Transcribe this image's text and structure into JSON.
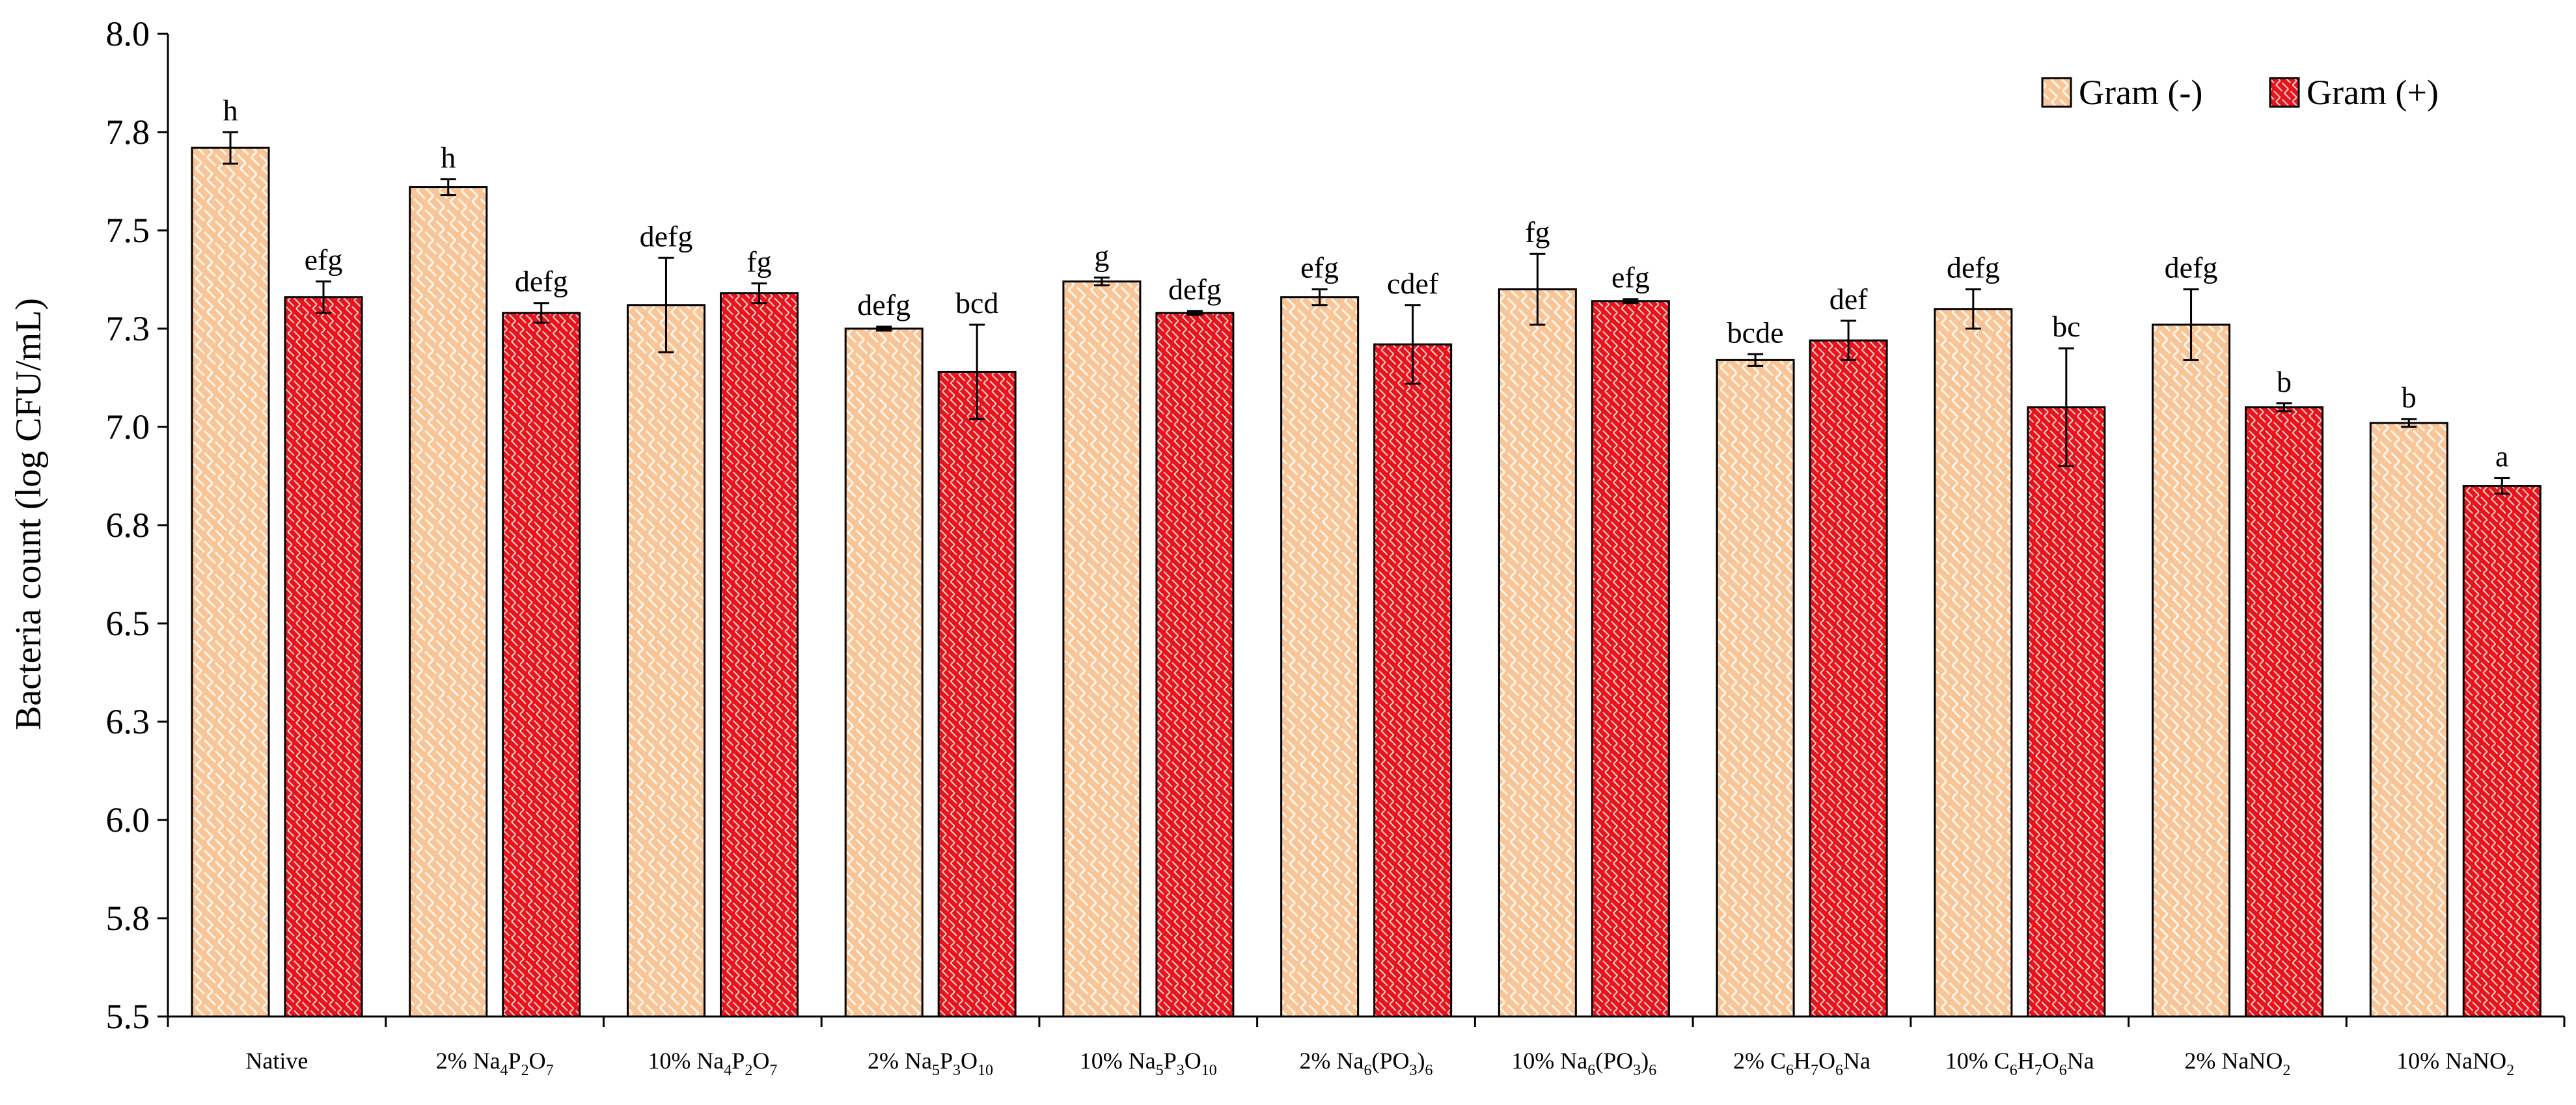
{
  "chart_data": {
    "type": "bar",
    "title": "",
    "xlabel": "",
    "ylabel": "Bacteria count (log CFU/mL)",
    "ylim": [
      5.5,
      8.0
    ],
    "yticks": [
      "5.5",
      "5.8",
      "6.0",
      "6.3",
      "6.5",
      "6.8",
      "7.0",
      "7.3",
      "7.5",
      "7.8",
      "8.0"
    ],
    "categories": [
      {
        "text": "Native",
        "parts": [
          {
            "t": "Native"
          }
        ]
      },
      {
        "text": "2% Na4P2O7",
        "parts": [
          {
            "t": "2% Na"
          },
          {
            "t": "4",
            "sub": true
          },
          {
            "t": "P"
          },
          {
            "t": "2",
            "sub": true
          },
          {
            "t": "O"
          },
          {
            "t": "7",
            "sub": true
          }
        ]
      },
      {
        "text": "10% Na4P2O7",
        "parts": [
          {
            "t": "10% Na"
          },
          {
            "t": "4",
            "sub": true
          },
          {
            "t": "P"
          },
          {
            "t": "2",
            "sub": true
          },
          {
            "t": "O"
          },
          {
            "t": "7",
            "sub": true
          }
        ]
      },
      {
        "text": "2% Na5P3O10",
        "parts": [
          {
            "t": "2% Na"
          },
          {
            "t": "5",
            "sub": true
          },
          {
            "t": "P"
          },
          {
            "t": "3",
            "sub": true
          },
          {
            "t": "O"
          },
          {
            "t": "10",
            "sub": true
          }
        ]
      },
      {
        "text": "10% Na5P3O10",
        "parts": [
          {
            "t": "10% Na"
          },
          {
            "t": "5",
            "sub": true
          },
          {
            "t": "P"
          },
          {
            "t": "3",
            "sub": true
          },
          {
            "t": "O"
          },
          {
            "t": "10",
            "sub": true
          }
        ]
      },
      {
        "text": "2% Na6(PO3)6",
        "parts": [
          {
            "t": "2% Na"
          },
          {
            "t": "6",
            "sub": true
          },
          {
            "t": "(PO"
          },
          {
            "t": "3",
            "sub": true
          },
          {
            "t": ")"
          },
          {
            "t": "6",
            "sub": true
          }
        ]
      },
      {
        "text": "10% Na6(PO3)6",
        "parts": [
          {
            "t": "10% Na"
          },
          {
            "t": "6",
            "sub": true
          },
          {
            "t": "(PO"
          },
          {
            "t": "3",
            "sub": true
          },
          {
            "t": ")"
          },
          {
            "t": "6",
            "sub": true
          }
        ]
      },
      {
        "text": "2% C6H7O6Na",
        "parts": [
          {
            "t": "2% C"
          },
          {
            "t": "6",
            "sub": true
          },
          {
            "t": "H"
          },
          {
            "t": "7",
            "sub": true
          },
          {
            "t": "O"
          },
          {
            "t": "6",
            "sub": true
          },
          {
            "t": "Na"
          }
        ]
      },
      {
        "text": "10% C6H7O6Na",
        "parts": [
          {
            "t": "10% C"
          },
          {
            "t": "6",
            "sub": true
          },
          {
            "t": "H"
          },
          {
            "t": "7",
            "sub": true
          },
          {
            "t": "O"
          },
          {
            "t": "6",
            "sub": true
          },
          {
            "t": "Na"
          }
        ]
      },
      {
        "text": "2% NaNO2",
        "parts": [
          {
            "t": "2% NaNO"
          },
          {
            "t": "2",
            "sub": true
          }
        ]
      },
      {
        "text": "10% NaNO2",
        "parts": [
          {
            "t": "10% NaNO"
          },
          {
            "t": "2",
            "sub": true
          }
        ]
      }
    ],
    "series": [
      {
        "name": "Gram (-)",
        "color": "#f9c597",
        "pattern": "weave-light",
        "values": [
          7.71,
          7.61,
          7.31,
          7.25,
          7.37,
          7.33,
          7.35,
          7.17,
          7.3,
          7.26,
          7.01
        ],
        "errors": [
          0.04,
          0.02,
          0.12,
          0.005,
          0.01,
          0.02,
          0.09,
          0.015,
          0.05,
          0.09,
          0.01
        ],
        "letters": [
          "h",
          "h",
          "defg",
          "defg",
          "g",
          "efg",
          "fg",
          "bcde",
          "defg",
          "defg",
          "b"
        ]
      },
      {
        "name": "Gram (+)",
        "color": "#e8141c",
        "pattern": "weave-dark",
        "values": [
          7.33,
          7.29,
          7.34,
          7.14,
          7.29,
          7.21,
          7.32,
          7.22,
          7.05,
          7.05,
          6.85
        ],
        "errors": [
          0.04,
          0.025,
          0.025,
          0.12,
          0.005,
          0.1,
          0.005,
          0.05,
          0.15,
          0.01,
          0.02
        ],
        "letters": [
          "efg",
          "defg",
          "fg",
          "bcd",
          "defg",
          "cdef",
          "efg",
          "def",
          "bc",
          "b",
          "a"
        ]
      }
    ],
    "legend_position": "top-right",
    "grid": false
  }
}
